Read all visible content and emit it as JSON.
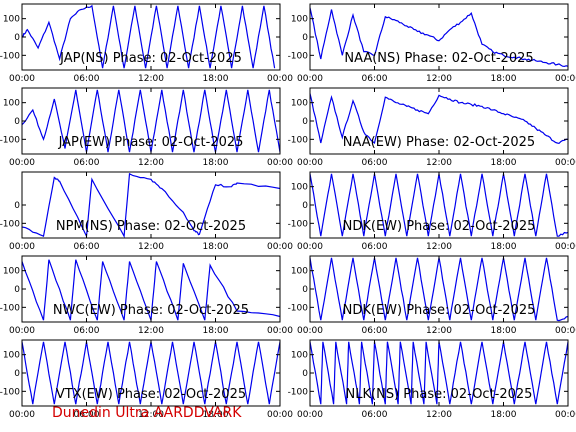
{
  "footer": "Dunedin Ultra AARDDVARK",
  "colors": {
    "trace": "#0000ee",
    "axis": "#000000",
    "label": "#000000",
    "footer": "#d40000"
  },
  "chart_data": [
    {
      "type": "line",
      "title": "JAP(NS) Phase: 02-Oct-2025",
      "xlim": [
        "00:00",
        "24:00"
      ],
      "ylim": [
        -180,
        180
      ],
      "xticks": [
        "00:00",
        "06:00",
        "12:00",
        "18:00",
        "00:00"
      ],
      "yticks": [
        100,
        0,
        -100
      ],
      "series": [
        {
          "x": [
            0,
            0.5,
            1.5,
            2.5,
            3.5,
            4.5,
            5.5,
            6.5,
            7.5,
            8.5,
            9.5,
            10.5,
            11.5,
            12.5,
            13.5,
            14.5,
            15.5,
            16.5,
            17.5,
            18.5,
            19.5,
            20.5,
            21.5,
            22.5,
            23.5
          ],
          "y": [
            0,
            40,
            -60,
            80,
            -120,
            100,
            150,
            170,
            -170,
            170,
            -170,
            170,
            -170,
            170,
            -170,
            170,
            -170,
            170,
            -170,
            170,
            -170,
            170,
            -170,
            170,
            -170
          ]
        }
      ]
    },
    {
      "type": "line",
      "title": "NAA(NS) Phase: 02-Oct-2025",
      "xlim": [
        "00:00",
        "24:00"
      ],
      "ylim": [
        -180,
        180
      ],
      "xticks": [
        "00:00",
        "06:00",
        "12:00",
        "18:00",
        "00:00"
      ],
      "yticks": [
        100,
        0,
        -100
      ],
      "series": [
        {
          "x": [
            0,
            1,
            2,
            3,
            4,
            5,
            6,
            7,
            8,
            9,
            10,
            11,
            12,
            13,
            14,
            15,
            16,
            17,
            18,
            19,
            20,
            21,
            22,
            23,
            24
          ],
          "y": [
            160,
            -120,
            150,
            -100,
            120,
            -80,
            -100,
            110,
            90,
            60,
            30,
            10,
            -20,
            40,
            80,
            130,
            -40,
            -80,
            -100,
            -110,
            -120,
            -130,
            -140,
            -150,
            -160
          ]
        }
      ]
    },
    {
      "type": "line",
      "title": "JAP(EW) Phase: 02-Oct-2025",
      "xlim": [
        "00:00",
        "24:00"
      ],
      "ylim": [
        -180,
        180
      ],
      "xticks": [
        "00:00",
        "06:00",
        "12:00",
        "18:00",
        "00:00"
      ],
      "yticks": [
        100,
        0,
        -100
      ],
      "series": [
        {
          "x": [
            0,
            1,
            2,
            3,
            4,
            5,
            6,
            7,
            8,
            9,
            10,
            11,
            12,
            13,
            14,
            15,
            16,
            17,
            18,
            19,
            20,
            21,
            22,
            23,
            24
          ],
          "y": [
            -20,
            60,
            -100,
            120,
            -150,
            170,
            -170,
            170,
            -170,
            170,
            -170,
            170,
            -170,
            170,
            -170,
            170,
            -170,
            170,
            -170,
            170,
            -170,
            170,
            -170,
            170,
            -170
          ]
        }
      ]
    },
    {
      "type": "line",
      "title": "NAA(EW) Phase: 02-Oct-2025",
      "xlim": [
        "00:00",
        "24:00"
      ],
      "ylim": [
        -180,
        180
      ],
      "xticks": [
        "00:00",
        "06:00",
        "12:00",
        "18:00",
        "00:00"
      ],
      "yticks": [
        100,
        0,
        -100
      ],
      "series": [
        {
          "x": [
            0,
            1,
            2,
            3,
            4,
            5,
            6,
            7,
            8,
            9,
            10,
            11,
            12,
            13,
            14,
            15,
            16,
            17,
            18,
            19,
            20,
            21,
            22,
            23,
            24
          ],
          "y": [
            150,
            -120,
            130,
            -90,
            110,
            -60,
            -120,
            130,
            100,
            80,
            60,
            40,
            140,
            120,
            100,
            90,
            80,
            60,
            40,
            20,
            0,
            -40,
            -80,
            -120,
            -100
          ]
        }
      ]
    },
    {
      "type": "line",
      "title": "NPM(NS) Phase: 02-Oct-2025",
      "xlim": [
        "00:00",
        "24:00"
      ],
      "ylim": [
        -180,
        180
      ],
      "xticks": [
        "00:00",
        "06:00",
        "12:00",
        "18:00",
        "00:00"
      ],
      "yticks": [
        0,
        -100
      ],
      "series": [
        {
          "x": [
            0,
            2,
            3,
            3.5,
            6,
            6.5,
            9.5,
            10,
            12,
            13,
            15,
            16,
            16.5,
            18,
            19.5,
            20,
            24
          ],
          "y": [
            -120,
            -170,
            150,
            130,
            -170,
            140,
            -170,
            170,
            140,
            90,
            -40,
            -140,
            -160,
            110,
            100,
            120,
            90
          ]
        }
      ]
    },
    {
      "type": "line",
      "title": "NDK(EW) Phase: 02-Oct-2025",
      "xlim": [
        "00:00",
        "24:00"
      ],
      "ylim": [
        -180,
        180
      ],
      "xticks": [
        "00:00",
        "06:00",
        "12:00",
        "18:00",
        "00:00"
      ],
      "yticks": [
        100,
        0,
        -100
      ],
      "series": [
        {
          "x": [
            0,
            1,
            2,
            3,
            4,
            5,
            6,
            7,
            8,
            9,
            10,
            11,
            12,
            13,
            14,
            15,
            16,
            17,
            18,
            19,
            20,
            21,
            22,
            23,
            24
          ],
          "y": [
            170,
            -170,
            170,
            -170,
            170,
            -170,
            170,
            -170,
            170,
            -170,
            170,
            -170,
            170,
            -170,
            170,
            -170,
            170,
            -170,
            170,
            -170,
            170,
            -170,
            170,
            -170,
            -150
          ]
        }
      ]
    },
    {
      "type": "line",
      "title": "NWC(EW) Phase: 02-Oct-2025",
      "xlim": [
        "00:00",
        "24:00"
      ],
      "ylim": [
        -180,
        180
      ],
      "xticks": [
        "00:00",
        "06:00",
        "12:00",
        "18:00",
        "00:00"
      ],
      "yticks": [
        100,
        0,
        -100
      ],
      "series": [
        {
          "x": [
            0,
            2,
            2.5,
            4.5,
            5,
            7,
            7.5,
            9.5,
            10,
            12,
            12.5,
            14.5,
            15,
            17,
            17.5,
            20,
            24
          ],
          "y": [
            150,
            -170,
            160,
            -170,
            160,
            -170,
            150,
            -170,
            150,
            -170,
            150,
            -170,
            140,
            -170,
            130,
            -120,
            -150
          ]
        }
      ]
    },
    {
      "type": "line",
      "title": "NDK(EW) Phase: 02-Oct-2025",
      "xlim": [
        "00:00",
        "24:00"
      ],
      "ylim": [
        -180,
        180
      ],
      "xticks": [
        "00:00",
        "06:00",
        "12:00",
        "18:00",
        "00:00"
      ],
      "yticks": [
        100,
        0,
        -100
      ],
      "series": [
        {
          "x": [
            0,
            1,
            2,
            3,
            4,
            5,
            6,
            7,
            8,
            9,
            10,
            11,
            12,
            13,
            14,
            15,
            16,
            17,
            18,
            19,
            20,
            21,
            22,
            23,
            24
          ],
          "y": [
            170,
            -170,
            170,
            -170,
            170,
            -170,
            170,
            -170,
            170,
            -170,
            170,
            -170,
            170,
            -170,
            170,
            -170,
            170,
            -170,
            170,
            -170,
            170,
            -170,
            170,
            -170,
            -150
          ]
        }
      ]
    },
    {
      "type": "line",
      "title": "VTX(EW) Phase: 02-Oct-2025",
      "xlim": [
        "00:00",
        "24:00"
      ],
      "ylim": [
        -180,
        180
      ],
      "xticks": [
        "00:00",
        "06:00",
        "12:00",
        "18:00",
        "00:00"
      ],
      "yticks": [
        100,
        0,
        -100
      ],
      "series": [
        {
          "x": [
            0,
            1,
            2,
            3,
            4,
            5,
            6,
            7,
            8,
            9,
            10,
            11,
            12,
            13,
            14,
            15,
            16,
            17,
            18,
            19,
            20,
            21,
            22,
            23,
            24
          ],
          "y": [
            170,
            -170,
            170,
            -170,
            170,
            -170,
            170,
            -170,
            170,
            -170,
            170,
            -170,
            170,
            -170,
            170,
            -170,
            170,
            -170,
            170,
            -170,
            170,
            -170,
            170,
            -170,
            170
          ]
        }
      ]
    },
    {
      "type": "line",
      "title": "NLK(NS) Phase: 02-Oct-2025",
      "xlim": [
        "00:00",
        "24:00"
      ],
      "ylim": [
        -180,
        180
      ],
      "xticks": [
        "00:00",
        "06:00",
        "12:00",
        "18:00",
        "00:00"
      ],
      "yticks": [
        100,
        0,
        -100
      ],
      "series": [
        {
          "x": [
            0,
            1,
            1.2,
            2.2,
            2.4,
            3.4,
            3.6,
            4.6,
            4.8,
            5.8,
            6,
            7,
            7.2,
            8.2,
            8.4,
            9.4,
            9.6,
            10.6,
            10.8,
            11.8,
            12,
            13,
            14,
            15,
            16,
            17,
            18,
            19,
            20,
            21,
            22,
            23,
            24
          ],
          "y": [
            170,
            -170,
            170,
            -170,
            170,
            -170,
            170,
            -170,
            170,
            -170,
            170,
            -170,
            170,
            -170,
            170,
            -170,
            170,
            -170,
            170,
            -170,
            170,
            -170,
            170,
            -170,
            170,
            -170,
            170,
            -170,
            170,
            -170,
            170,
            -170,
            170
          ]
        }
      ]
    }
  ]
}
